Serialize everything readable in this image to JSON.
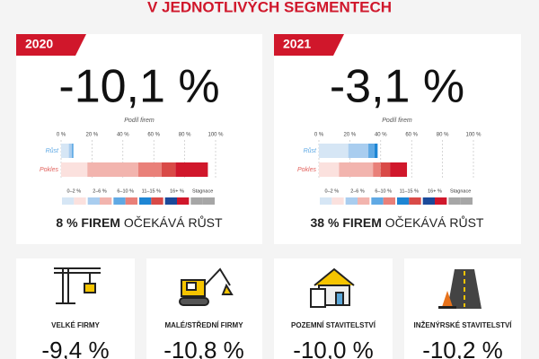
{
  "title": "V JEDNOTLIVÝCH SEGMENTECH",
  "chart_data": [
    {
      "type": "bar",
      "orientation": "horizontal",
      "stacked": true,
      "year": "2020",
      "headline": "-10,1 %",
      "x_label": "Podíl firem",
      "categories": [
        "Růst",
        "Pokles"
      ],
      "series": [
        {
          "name": "0–2 %",
          "colors": [
            "#d6e6f5",
            "#fbe1de"
          ],
          "values": [
            5,
            17
          ]
        },
        {
          "name": "2–6 %",
          "colors": [
            "#a9cdef",
            "#f2b4ae"
          ],
          "values": [
            2,
            33
          ]
        },
        {
          "name": "6–10 %",
          "colors": [
            "#5fa9e4",
            "#e98079"
          ],
          "values": [
            1,
            15
          ]
        },
        {
          "name": "11–15 %",
          "colors": [
            "#1e86d4",
            "#d94a47"
          ],
          "values": [
            null,
            9
          ]
        },
        {
          "name": "16+ %",
          "colors": [
            "#1b4a9a",
            "#d0172b"
          ],
          "values": [
            null,
            21
          ]
        },
        {
          "name": "Stagnace",
          "colors": [
            "#a6a6a6",
            "#a6a6a6"
          ],
          "values": [
            null,
            null
          ]
        }
      ],
      "xlim": [
        0,
        100
      ],
      "xticks": [
        {
          "value": 0,
          "label": "0 %"
        },
        {
          "value": 20,
          "label": "20 %"
        },
        {
          "value": 40,
          "label": "40 %"
        },
        {
          "value": 60,
          "label": "60 %"
        },
        {
          "value": 80,
          "label": "80 %"
        },
        {
          "value": 100,
          "label": "100 %"
        }
      ],
      "footer_bold": "8 % FIREM",
      "footer_text": "OČEKÁVÁ RŮST"
    },
    {
      "type": "bar",
      "orientation": "horizontal",
      "stacked": true,
      "year": "2021",
      "headline": "-3,1 %",
      "x_label": "Podíl firem",
      "categories": [
        "Růst",
        "Pokles"
      ],
      "series": [
        {
          "name": "0–2 %",
          "colors": [
            "#d6e6f5",
            "#fbe1de"
          ],
          "values": [
            19,
            13
          ]
        },
        {
          "name": "2–6 %",
          "colors": [
            "#a9cdef",
            "#f2b4ae"
          ],
          "values": [
            13,
            22
          ]
        },
        {
          "name": "6–10 %",
          "colors": [
            "#5fa9e4",
            "#e98079"
          ],
          "values": [
            4,
            5
          ]
        },
        {
          "name": "11–15 %",
          "colors": [
            "#1e86d4",
            "#d94a47"
          ],
          "values": [
            2,
            6
          ]
        },
        {
          "name": "16+ %",
          "colors": [
            "#1b4a9a",
            "#d0172b"
          ],
          "values": [
            null,
            11
          ]
        },
        {
          "name": "Stagnace",
          "colors": [
            "#a6a6a6",
            "#a6a6a6"
          ],
          "values": [
            null,
            null
          ]
        }
      ],
      "xlim": [
        0,
        100
      ],
      "xticks": [
        {
          "value": 0,
          "label": "0 %"
        },
        {
          "value": 20,
          "label": "20 %"
        },
        {
          "value": 40,
          "label": "40 %"
        },
        {
          "value": 60,
          "label": "60 %"
        },
        {
          "value": 80,
          "label": "80 %"
        },
        {
          "value": 100,
          "label": "100 %"
        }
      ],
      "footer_bold": "38 % FIREM",
      "footer_text": "OČEKÁVÁ RŮST"
    }
  ],
  "segments": [
    {
      "label": "VELKÉ FIRMY",
      "value": "-9,4 %"
    },
    {
      "label": "MALÉ/STŘEDNÍ FIRMY",
      "value": "-10,8 %"
    },
    {
      "label": "POZEMNÍ STAVITELSTVÍ",
      "value": "-10,0 %"
    },
    {
      "label": "INŽENÝRSKÉ STAVITELSTVÍ",
      "value": "-10,2 %"
    }
  ]
}
